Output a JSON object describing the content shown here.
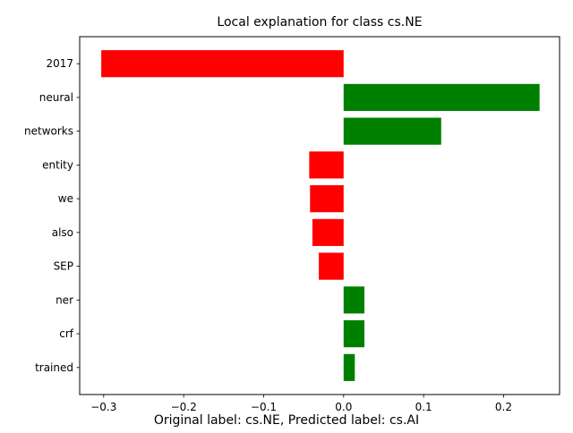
{
  "chart_data": {
    "type": "bar",
    "orientation": "horizontal",
    "title": "Local explanation for class cs.NE",
    "caption": "Original label: cs.NE, Predicted label: cs.AI",
    "categories": [
      "2017",
      "neural",
      "networks",
      "entity",
      "we",
      "also",
      "SEP",
      "ner",
      "crf",
      "trained"
    ],
    "values": [
      -0.303,
      0.245,
      0.122,
      -0.043,
      -0.042,
      -0.039,
      -0.031,
      0.026,
      0.026,
      0.014
    ],
    "xlim": [
      -0.33,
      0.27
    ],
    "xticks": [
      -0.3,
      -0.2,
      -0.1,
      0.0,
      0.1,
      0.2
    ],
    "xtick_labels": [
      "−0.3",
      "−0.2",
      "−0.1",
      "0.0",
      "0.1",
      "0.2"
    ],
    "grid": false,
    "colors": {
      "positive": "#008000",
      "negative": "#ff0000"
    }
  }
}
